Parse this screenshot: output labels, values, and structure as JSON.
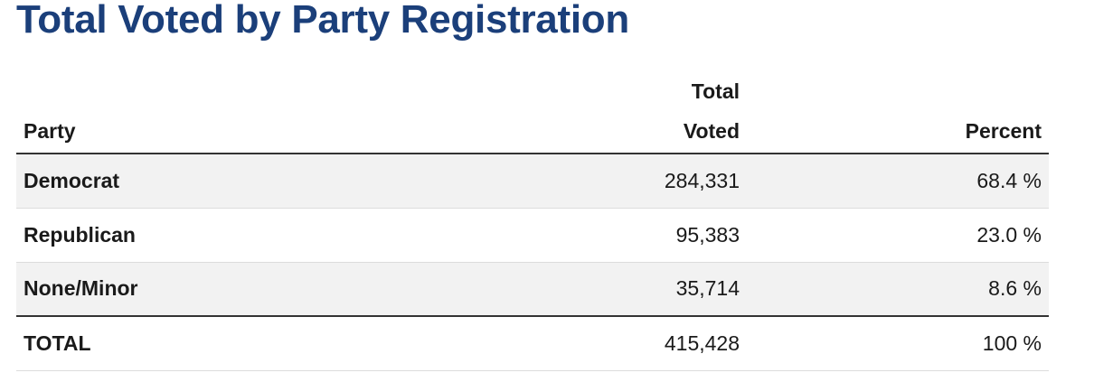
{
  "title": "Total Voted by Party Registration",
  "table": {
    "headers": {
      "party": "Party",
      "total_voted_line1": "Total",
      "total_voted_line2": "Voted",
      "percent": "Percent"
    },
    "rows": [
      {
        "party": "Democrat",
        "total_voted": "284,331",
        "percent": "68.4 %"
      },
      {
        "party": "Republican",
        "total_voted": "95,383",
        "percent": "23.0 %"
      },
      {
        "party": "None/Minor",
        "total_voted": "35,714",
        "percent": "8.6 %"
      }
    ],
    "total": {
      "party": "TOTAL",
      "total_voted": "415,428",
      "percent": "100 %"
    }
  },
  "colors": {
    "title": "#1b3f7a",
    "shaded_row": "#f2f2f2",
    "rule": "#333333"
  }
}
